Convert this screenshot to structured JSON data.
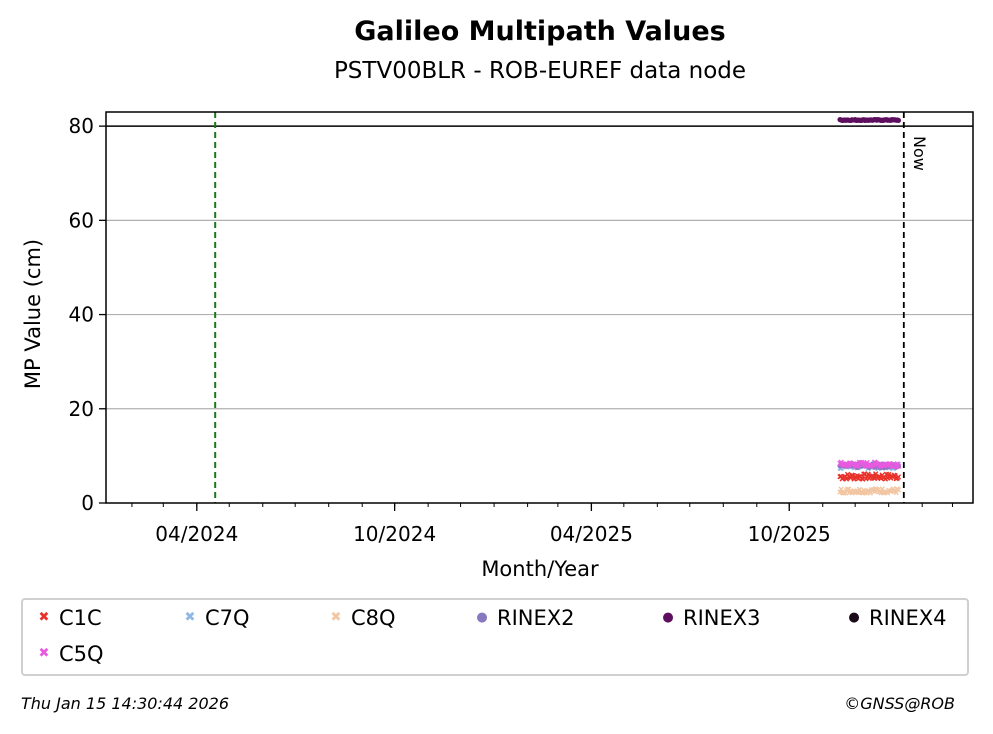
{
  "chart_data": {
    "type": "scatter",
    "title": "Galileo Multipath Values",
    "subtitle": "PSTV00BLR - ROB-EUREF data node",
    "xlabel": "Month/Year",
    "ylabel": "MP Value (cm)",
    "xlim": [
      "2024-01-08",
      "2026-03-20"
    ],
    "ylim": [
      0,
      83
    ],
    "x_ticks": [
      "04/2024",
      "10/2024",
      "04/2025",
      "10/2025"
    ],
    "x_tick_dates": [
      "2024-04-01",
      "2024-10-01",
      "2025-04-01",
      "2025-10-01"
    ],
    "y_ticks": [
      0,
      20,
      40,
      60,
      80
    ],
    "grid": "y",
    "reference_line_y": 80,
    "green_dashed_line_date": "2024-04-18",
    "now_line": {
      "date": "2026-01-15",
      "label": "Now"
    },
    "series": [
      {
        "name": "C1C",
        "marker": "x",
        "color": "#e8322b",
        "x_start": "2025-11-17",
        "x_end": "2026-01-10",
        "y_mean": 5.6,
        "y_spread": 0.6
      },
      {
        "name": "C7Q",
        "marker": "x",
        "color": "#8fb8e4",
        "x_start": "2025-11-17",
        "x_end": "2026-01-10",
        "y_mean": 7.8,
        "y_spread": 0.5
      },
      {
        "name": "C8Q",
        "marker": "x",
        "color": "#f2c6a2",
        "x_start": "2025-11-17",
        "x_end": "2026-01-10",
        "y_mean": 2.6,
        "y_spread": 0.5
      },
      {
        "name": "RINEX2",
        "marker": "o",
        "color": "#8878c0",
        "x_start": "2025-11-17",
        "x_end": "2026-01-10",
        "y_mean": 7.9,
        "y_spread": 0.4
      },
      {
        "name": "RINEX3",
        "marker": "o",
        "color": "#5e0e5e",
        "x_start": "2025-11-17",
        "x_end": "2026-01-10",
        "y_mean": 81.3,
        "y_spread": 0.1
      },
      {
        "name": "RINEX4",
        "marker": "o",
        "color": "#1a0a1a",
        "x_start": "",
        "x_end": "",
        "y_mean": null,
        "y_spread": 0
      },
      {
        "name": "C5Q",
        "marker": "x",
        "color": "#e85ae0",
        "x_start": "2025-11-17",
        "x_end": "2026-01-10",
        "y_mean": 8.2,
        "y_spread": 0.5
      }
    ]
  },
  "legend": [
    {
      "label": "C1C",
      "glyph": "✖",
      "color": "#e8322b"
    },
    {
      "label": "C7Q",
      "glyph": "✖",
      "color": "#8fb8e4"
    },
    {
      "label": "C8Q",
      "glyph": "✖",
      "color": "#f2c6a2"
    },
    {
      "label": "RINEX2",
      "glyph": "●",
      "color": "#8878c0"
    },
    {
      "label": "RINEX3",
      "glyph": "●",
      "color": "#5e0e5e"
    },
    {
      "label": "RINEX4",
      "glyph": "●",
      "color": "#1a0a1a"
    },
    {
      "label": "C5Q",
      "glyph": "✖",
      "color": "#e85ae0"
    }
  ],
  "footer": {
    "timestamp": "Thu Jan 15 14:30:44 2026",
    "copyright": "©GNSS@ROB"
  }
}
